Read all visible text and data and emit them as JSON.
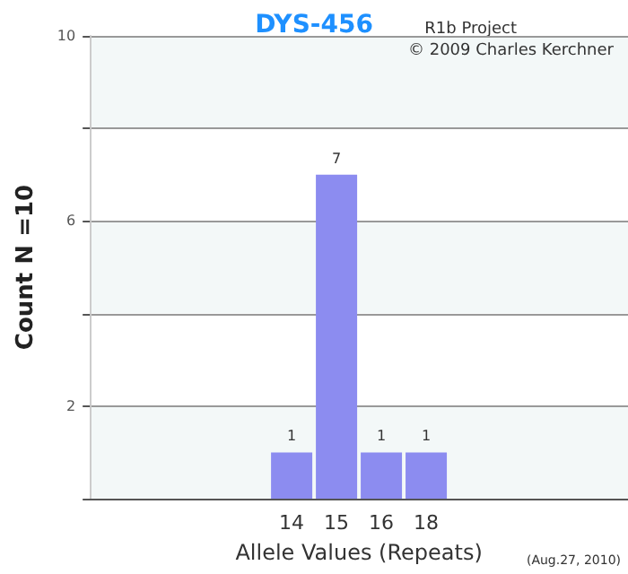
{
  "chart_data": {
    "type": "bar",
    "title": "DYS-456",
    "xlabel": "Allele Values (Repeats)",
    "ylabel": "Count N =10",
    "categories": [
      null,
      null,
      null,
      null,
      "14",
      "15",
      "16",
      "18",
      null,
      null,
      null,
      null
    ],
    "values": [
      null,
      null,
      null,
      null,
      1,
      7,
      1,
      1,
      null,
      null,
      null,
      null
    ],
    "color": "#8c8cf0",
    "data_labels": true,
    "grid": "y",
    "ylim": [
      0,
      10
    ],
    "yticks": [
      {
        "value": 0,
        "label": null
      },
      2,
      {
        "value": 4,
        "label": null
      },
      6,
      {
        "value": 8,
        "label": null
      },
      10
    ],
    "annotations": [
      "R1b Project",
      "© 2009 Charles Kerchner",
      "(Aug.27, 2010)"
    ]
  }
}
